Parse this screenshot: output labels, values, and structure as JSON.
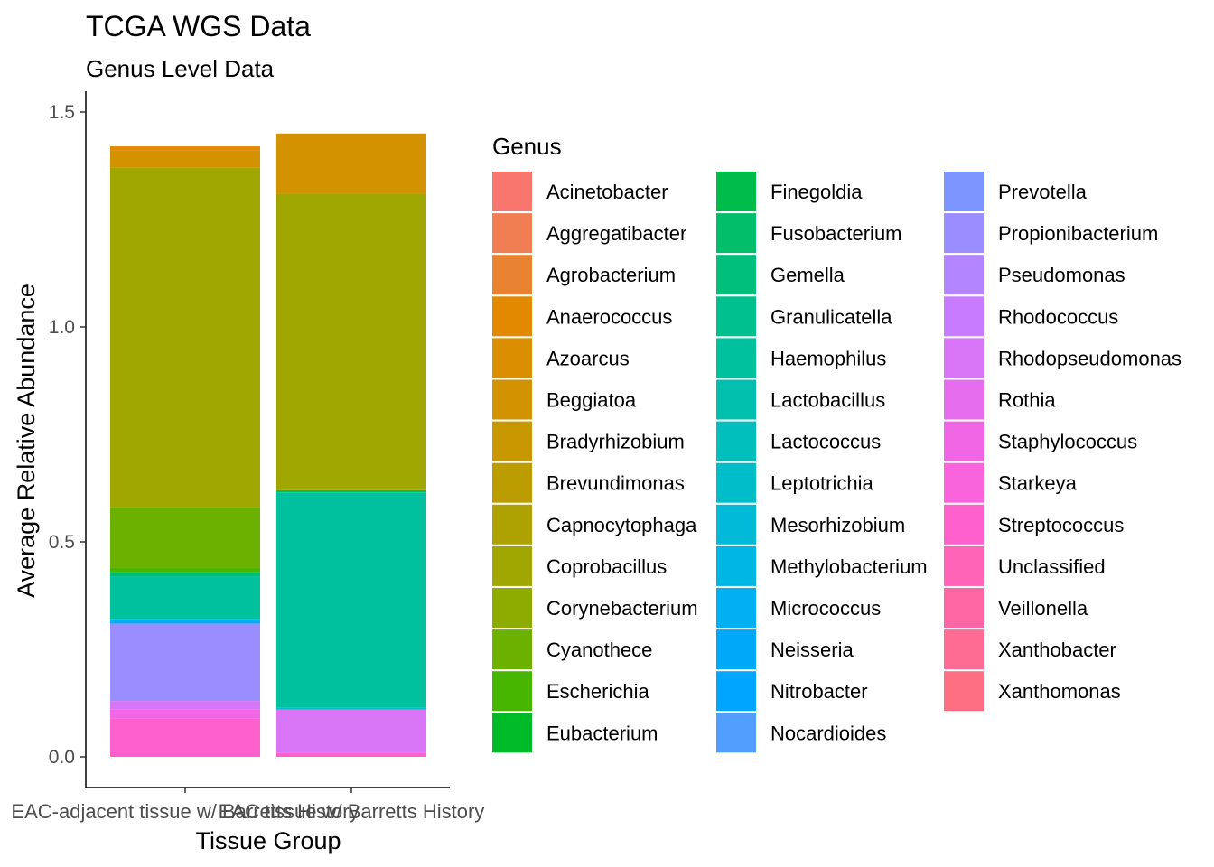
{
  "chart_data": {
    "type": "bar",
    "stacked": true,
    "title": "TCGA WGS Data",
    "subtitle": "Genus Level Data",
    "xlabel": "Tissue Group",
    "ylabel": "Average Relative Abundance",
    "ylim": [
      0,
      1.5
    ],
    "yticks": [
      "0.0",
      "0.5",
      "1.0",
      "1.5"
    ],
    "categories": [
      "EAC-adjacent tissue w/ Barretts History",
      "EAC tissue w/ Barretts History"
    ],
    "legend": {
      "title": "Genus",
      "placement": "right",
      "columns": 3,
      "entries": [
        {
          "name": "Acinetobacter",
          "color": "#F8766D"
        },
        {
          "name": "Aggregatibacter",
          "color": "#F17D52"
        },
        {
          "name": "Agrobacterium",
          "color": "#EA8331"
        },
        {
          "name": "Anaerococcus",
          "color": "#E38900"
        },
        {
          "name": "Azoarcus",
          "color": "#DB8E00"
        },
        {
          "name": "Beggiatoa",
          "color": "#D39200"
        },
        {
          "name": "Bradyrhizobium",
          "color": "#C99800"
        },
        {
          "name": "Brevundimonas",
          "color": "#BB9D00"
        },
        {
          "name": "Capnocytophaga",
          "color": "#AEA200"
        },
        {
          "name": "Coprobacillus",
          "color": "#9FA700"
        },
        {
          "name": "Corynebacterium",
          "color": "#8EAB00"
        },
        {
          "name": "Cyanothece",
          "color": "#6DB100"
        },
        {
          "name": "Escherichia",
          "color": "#47B600"
        },
        {
          "name": "Eubacterium",
          "color": "#00BA28"
        },
        {
          "name": "Finegoldia",
          "color": "#00BC4A"
        },
        {
          "name": "Fusobacterium",
          "color": "#00BE69"
        },
        {
          "name": "Gemella",
          "color": "#00BF7D"
        },
        {
          "name": "Granulicatella",
          "color": "#00C08E"
        },
        {
          "name": "Haemophilus",
          "color": "#00C19E"
        },
        {
          "name": "Lactobacillus",
          "color": "#00C0AD"
        },
        {
          "name": "Lactococcus",
          "color": "#00BFBC"
        },
        {
          "name": "Leptotrichia",
          "color": "#00BDCA"
        },
        {
          "name": "Mesorhizobium",
          "color": "#00BAD8"
        },
        {
          "name": "Methylobacterium",
          "color": "#00B6E5"
        },
        {
          "name": "Micrococcus",
          "color": "#00B0F0"
        },
        {
          "name": "Neisseria",
          "color": "#00A8FA"
        },
        {
          "name": "Nitrobacter",
          "color": "#00A5FF"
        },
        {
          "name": "Nocardioides",
          "color": "#529EFF"
        },
        {
          "name": "Prevotella",
          "color": "#7C95FF"
        },
        {
          "name": "Propionibacterium",
          "color": "#9A8DFF"
        },
        {
          "name": "Pseudomonas",
          "color": "#B385FF"
        },
        {
          "name": "Rhodococcus",
          "color": "#C77CFF"
        },
        {
          "name": "Rhodopseudomonas",
          "color": "#D876F7"
        },
        {
          "name": "Rothia",
          "color": "#E66EEE"
        },
        {
          "name": "Staphylococcus",
          "color": "#F066E4"
        },
        {
          "name": "Starkeya",
          "color": "#F963DC"
        },
        {
          "name": "Streptococcus",
          "color": "#FF61CC"
        },
        {
          "name": "Unclassified",
          "color": "#FF64B6"
        },
        {
          "name": "Veillonella",
          "color": "#FF67A4"
        },
        {
          "name": "Xanthobacter",
          "color": "#FF6C93"
        },
        {
          "name": "Xanthomonas",
          "color": "#FF6F83"
        }
      ]
    },
    "series": [
      {
        "genus": "Streptococcus",
        "values": [
          0.09,
          0.01
        ]
      },
      {
        "genus": "Staphylococcus",
        "values": [
          0.02,
          0.0
        ]
      },
      {
        "genus": "Rhodopseudomonas",
        "values": [
          0.02,
          0.1
        ]
      },
      {
        "genus": "Propionibacterium",
        "values": [
          0.18,
          0.0
        ]
      },
      {
        "genus": "Micrococcus",
        "values": [
          0.01,
          0.0
        ]
      },
      {
        "genus": "Lactococcus",
        "values": [
          0.0,
          0.005
        ]
      },
      {
        "genus": "Haemophilus",
        "values": [
          0.1,
          0.5
        ]
      },
      {
        "genus": "Fusobacterium",
        "values": [
          0.01,
          0.005
        ]
      },
      {
        "genus": "Escherichia",
        "values": [
          0.01,
          0.0
        ]
      },
      {
        "genus": "Cyanothece",
        "values": [
          0.14,
          0.0
        ]
      },
      {
        "genus": "Coprobacillus",
        "values": [
          0.79,
          0.69
        ]
      },
      {
        "genus": "Beggiatoa",
        "values": [
          0.04,
          0.14
        ]
      },
      {
        "genus": "Anaerococcus",
        "values": [
          0.01,
          0.0
        ]
      }
    ]
  }
}
